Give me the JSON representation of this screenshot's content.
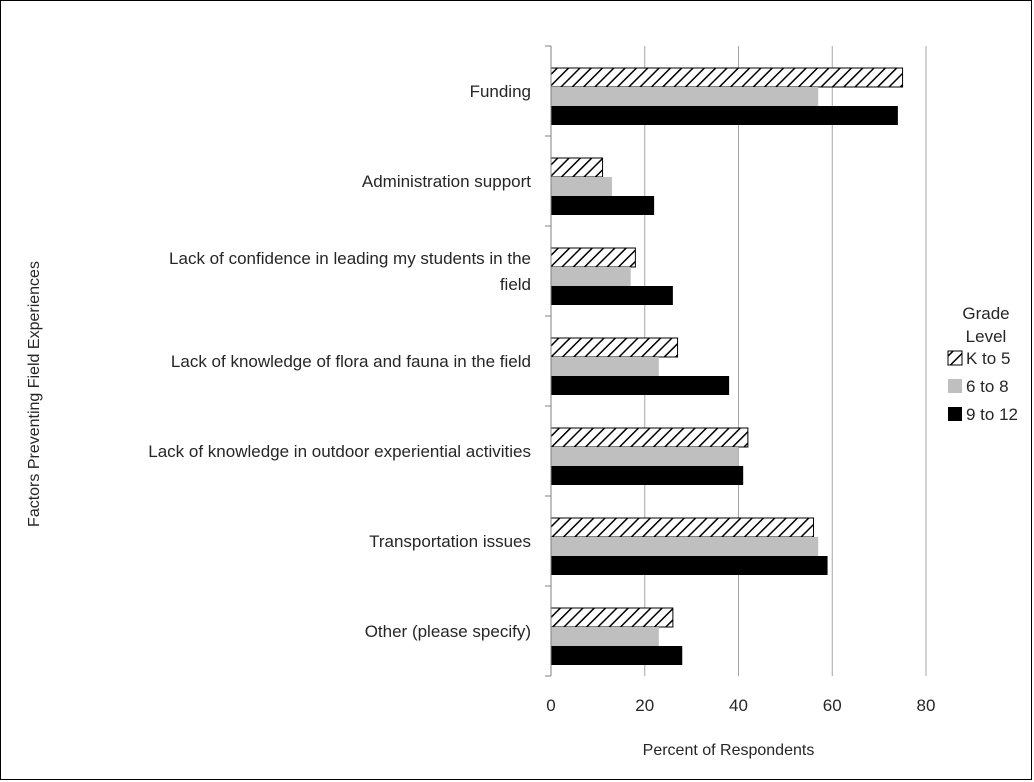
{
  "chart_data": {
    "type": "bar",
    "orientation": "horizontal",
    "categories": [
      [
        "Funding"
      ],
      [
        "Administration support"
      ],
      [
        "Lack of confidence in leading my students in the",
        "field"
      ],
      [
        "Lack of knowledge of flora and fauna in the field"
      ],
      [
        "Lack of knowledge in outdoor experiential activities"
      ],
      [
        "Transportation issues"
      ],
      [
        "Other (please specify)"
      ]
    ],
    "series": [
      {
        "name": "K to 5",
        "values": [
          75,
          11,
          18,
          27,
          42,
          56,
          26
        ]
      },
      {
        "name": "6 to 8",
        "values": [
          57,
          13,
          17,
          23,
          40,
          57,
          23
        ]
      },
      {
        "name": "9 to 12",
        "values": [
          74,
          22,
          26,
          38,
          41,
          59,
          28
        ]
      }
    ],
    "series_styles": [
      {
        "fill": "hatch",
        "stroke": "#000000"
      },
      {
        "fill": "#bfbfbf"
      },
      {
        "fill": "#000000"
      }
    ],
    "xlabel": "Percent of Respondents",
    "ylabel": "Factors Preventing Field Experiences",
    "xlim": [
      0,
      80
    ],
    "xticks": [
      0,
      20,
      40,
      60,
      80
    ],
    "grid": "vertical",
    "legend": {
      "title_lines": [
        "Grade",
        "Level"
      ],
      "position": "right"
    }
  }
}
